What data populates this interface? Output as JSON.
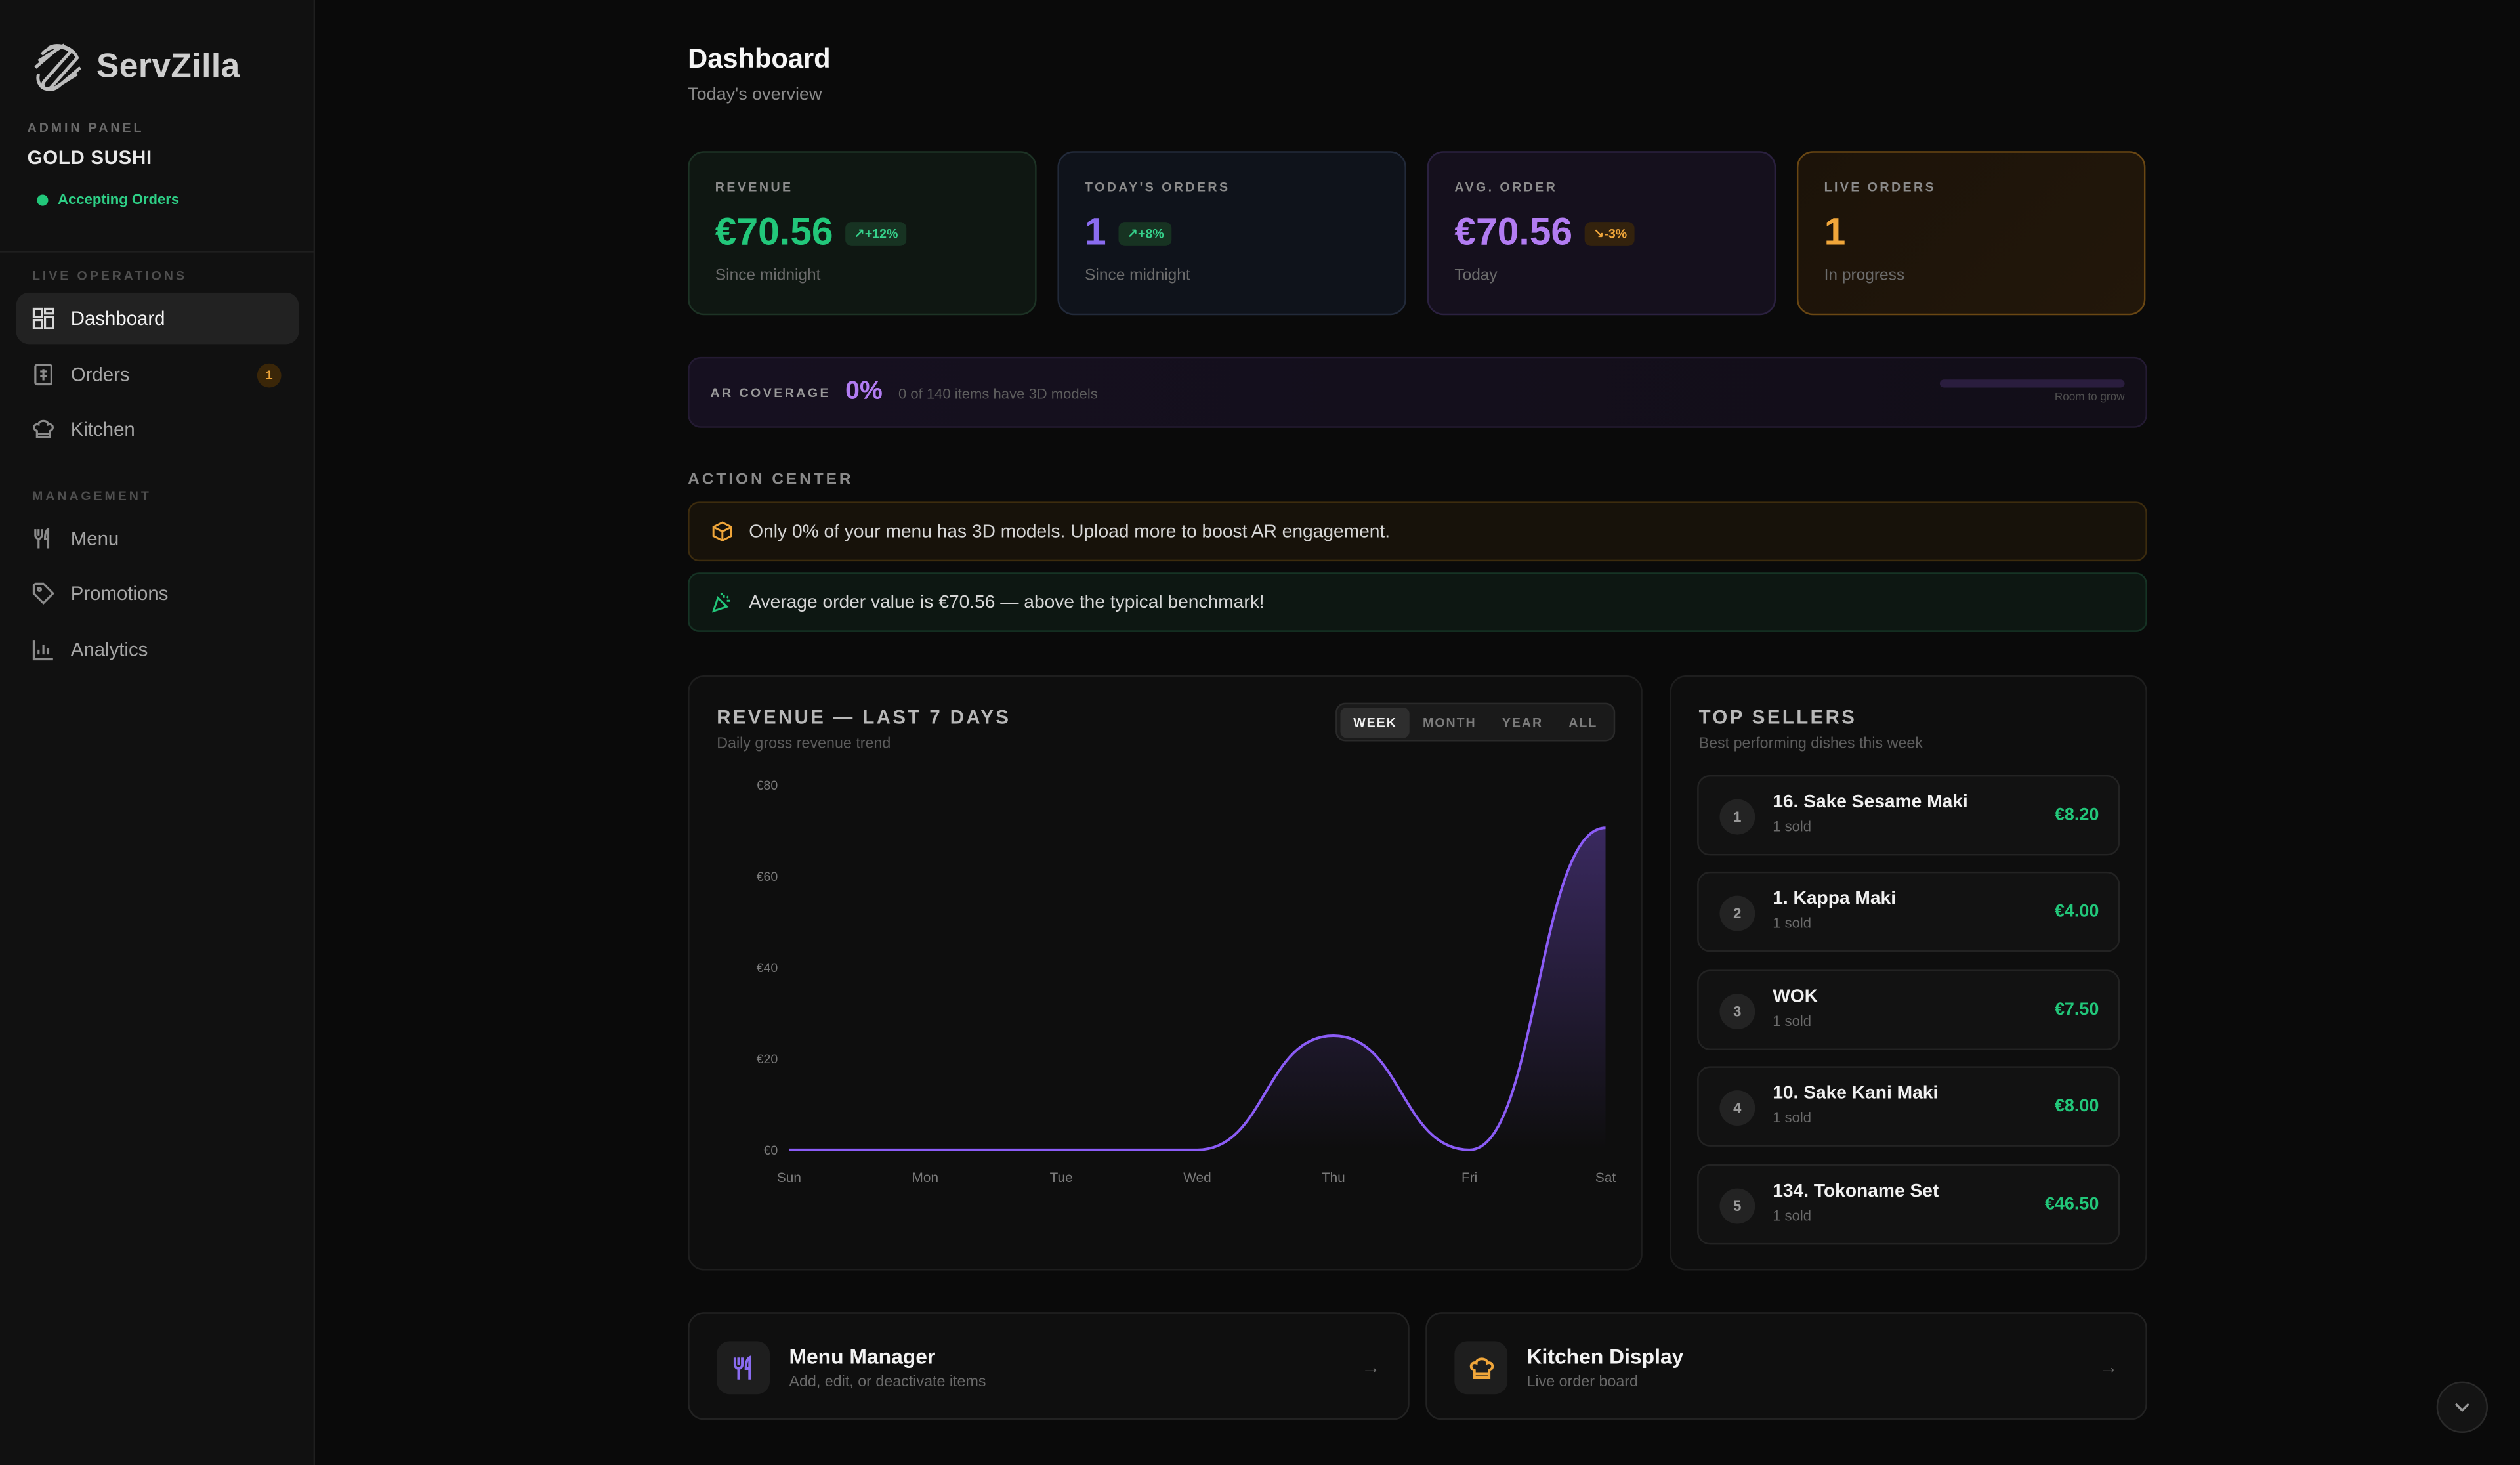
{
  "brand": {
    "name": "ServZilla"
  },
  "sidebar": {
    "admin_label": "ADMIN PANEL",
    "store_name": "GOLD SUSHI",
    "status": "Accepting Orders",
    "sections": [
      {
        "label": "LIVE OPERATIONS"
      },
      {
        "label": "MANAGEMENT"
      }
    ],
    "items": [
      {
        "label": "Dashboard",
        "icon": "dashboard-icon"
      },
      {
        "label": "Orders",
        "icon": "receipt-icon",
        "badge": "1"
      },
      {
        "label": "Kitchen",
        "icon": "chef-hat-icon"
      },
      {
        "label": "Menu",
        "icon": "utensils-icon"
      },
      {
        "label": "Promotions",
        "icon": "tag-icon"
      },
      {
        "label": "Analytics",
        "icon": "bar-chart-icon"
      }
    ]
  },
  "header": {
    "title": "Dashboard",
    "subtitle": "Today's overview"
  },
  "stats": [
    {
      "label": "REVENUE",
      "value": "€70.56",
      "delta": "+12%",
      "sub": "Since midnight",
      "color": "#22c77a"
    },
    {
      "label": "TODAY'S ORDERS",
      "value": "1",
      "delta": "+8%",
      "sub": "Since midnight",
      "color": "#8a6cf0"
    },
    {
      "label": "AVG. ORDER",
      "value": "€70.56",
      "delta": "-3%",
      "sub": "Today",
      "color": "#b27cf2"
    },
    {
      "label": "LIVE ORDERS",
      "value": "1",
      "sub": "In progress",
      "color": "#f0a63a"
    }
  ],
  "ar_coverage": {
    "label": "AR COVERAGE",
    "value": "0%",
    "progress": 0,
    "note": "0 of 140 items have 3D models",
    "hint": "Room to grow"
  },
  "action_center": {
    "title": "ACTION CENTER",
    "alerts": [
      {
        "text": "Only 0% of your menu has 3D models. Upload more to boost AR engagement.",
        "icon": "cube-icon",
        "color": "#f0a63a"
      },
      {
        "text": "Average order value is €70.56 — above the typical benchmark!",
        "icon": "party-popper-icon",
        "color": "#22c77a"
      }
    ]
  },
  "revenue_panel": {
    "title": "REVENUE — LAST 7 DAYS",
    "subtitle": "Daily gross revenue trend",
    "ranges": [
      "WEEK",
      "MONTH",
      "YEAR",
      "ALL"
    ],
    "selected_range": "WEEK"
  },
  "chart_data": {
    "type": "area",
    "categories": [
      "Sun",
      "Mon",
      "Tue",
      "Wed",
      "Thu",
      "Fri",
      "Sat"
    ],
    "values": [
      0,
      0,
      0,
      0,
      25,
      0,
      70.56
    ],
    "ylim": [
      0,
      80
    ],
    "yticks": [
      0,
      20,
      40,
      60,
      80
    ],
    "ytick_labels": [
      "€0",
      "€20",
      "€40",
      "€60",
      "€80"
    ],
    "color": "#8b5cf6",
    "grid": false,
    "smooth": true
  },
  "top_sellers": {
    "title": "TOP SELLERS",
    "subtitle": "Best performing dishes this week",
    "items": [
      {
        "rank": "1",
        "name": "16. Sake Sesame Maki",
        "sold": "1 sold",
        "price": "€8.20"
      },
      {
        "rank": "2",
        "name": "1. Kappa Maki",
        "sold": "1 sold",
        "price": "€4.00"
      },
      {
        "rank": "3",
        "name": "WOK",
        "sold": "1 sold",
        "price": "€7.50"
      },
      {
        "rank": "4",
        "name": "10. Sake Kani Maki",
        "sold": "1 sold",
        "price": "€8.00"
      },
      {
        "rank": "5",
        "name": "134. Tokoname Set",
        "sold": "1 sold",
        "price": "€46.50"
      }
    ]
  },
  "quick_links": [
    {
      "title": "Menu Manager",
      "sub": "Add, edit, or deactivate items",
      "icon": "utensils-icon",
      "color": "#8a6cf0"
    },
    {
      "title": "Kitchen Display",
      "sub": "Live order board",
      "icon": "chef-hat-icon",
      "color": "#f0a63a"
    }
  ]
}
